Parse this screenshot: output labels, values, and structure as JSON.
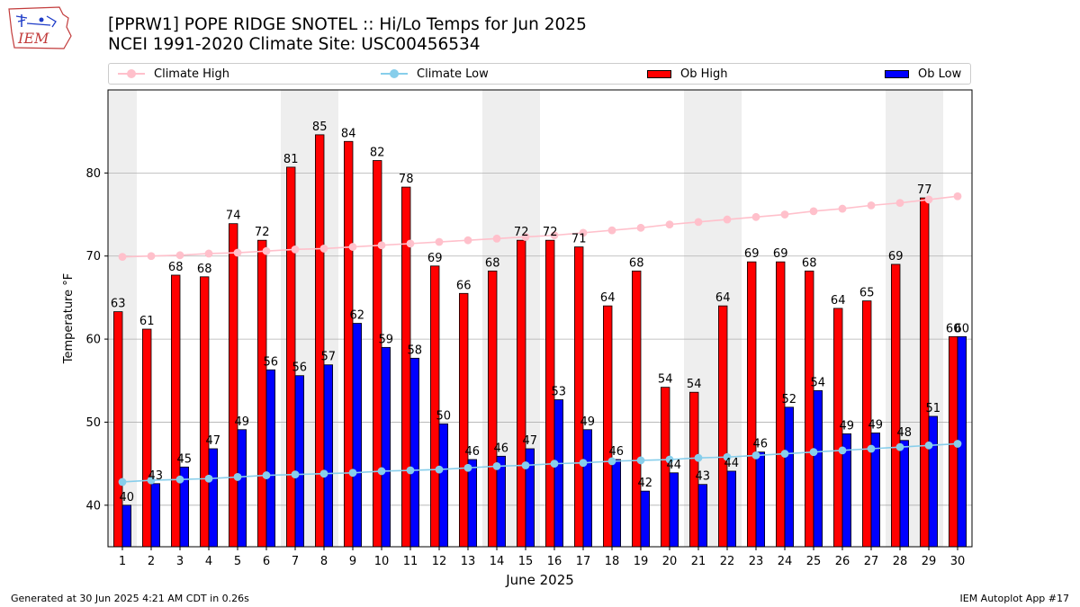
{
  "header": {
    "logo_text": "IEM",
    "title_line1": "[PPRW1] POPE RIDGE SNOTEL :: Hi/Lo Temps for Jun 2025",
    "title_line2": "NCEI 1991-2020 Climate Site: USC00456534"
  },
  "legend": {
    "climate_high": "Climate High",
    "climate_low": "Climate Low",
    "ob_high": "Ob High",
    "ob_low": "Ob Low"
  },
  "colors": {
    "climate_high": "#ffc0cb",
    "climate_low": "#87ceeb",
    "ob_high": "#ff0000",
    "ob_low": "#0000ff",
    "weekend_band": "#eeeeee",
    "grid": "#b0b0b0"
  },
  "footer": {
    "generated": "Generated at 30 Jun 2025 4:21 AM CDT in 0.26s",
    "app": "IEM Autoplot App #17"
  },
  "chart_data": {
    "type": "bar",
    "xlabel": "June 2025",
    "ylabel": "Temperature °F",
    "ylim": [
      35,
      90
    ],
    "yticks": [
      40,
      50,
      60,
      70,
      80
    ],
    "grid": true,
    "legend_position": "top",
    "categories": [
      "1",
      "2",
      "3",
      "4",
      "5",
      "6",
      "7",
      "8",
      "9",
      "10",
      "11",
      "12",
      "13",
      "14",
      "15",
      "16",
      "17",
      "18",
      "19",
      "20",
      "21",
      "22",
      "23",
      "24",
      "25",
      "26",
      "27",
      "28",
      "29",
      "30"
    ],
    "shaded_days": [
      1,
      7,
      8,
      14,
      15,
      21,
      22,
      28,
      29
    ],
    "series": [
      {
        "name": "Ob High",
        "kind": "bar",
        "values": [
          63.3,
          61.2,
          67.7,
          67.5,
          73.9,
          71.9,
          80.7,
          84.6,
          83.8,
          81.5,
          78.3,
          68.8,
          65.5,
          68.2,
          71.9,
          71.9,
          71.1,
          64.0,
          68.2,
          54.2,
          53.6,
          64.0,
          69.3,
          69.3,
          68.2,
          63.7,
          64.6,
          69.0,
          77.0,
          60.3
        ],
        "labels": [
          "63",
          "61",
          "68",
          "68",
          "74",
          "72",
          "81",
          "85",
          "84",
          "82",
          "78",
          "69",
          "66",
          "68",
          "72",
          "72",
          "71",
          "64",
          "68",
          "54",
          "54",
          "64",
          "69",
          "69",
          "68",
          "64",
          "65",
          "69",
          "77",
          "60"
        ]
      },
      {
        "name": "Ob Low",
        "kind": "bar",
        "values": [
          40.0,
          42.6,
          44.6,
          46.8,
          49.1,
          56.3,
          55.6,
          56.9,
          61.9,
          59.0,
          57.7,
          49.8,
          45.5,
          45.9,
          46.8,
          52.7,
          49.1,
          45.5,
          41.7,
          43.9,
          42.5,
          44.1,
          46.4,
          51.8,
          53.8,
          48.6,
          48.7,
          47.8,
          50.7,
          60.3
        ],
        "labels": [
          "40",
          "43",
          "45",
          "47",
          "49",
          "56",
          "56",
          "57",
          "62",
          "59",
          "58",
          "50",
          "46",
          "46",
          "47",
          "53",
          "49",
          "46",
          "42",
          "44",
          "43",
          "44",
          "46",
          "52",
          "54",
          "49",
          "49",
          "48",
          "51",
          "60"
        ]
      },
      {
        "name": "Climate High",
        "kind": "line",
        "values": [
          69.9,
          70.0,
          70.1,
          70.3,
          70.4,
          70.6,
          70.8,
          70.9,
          71.1,
          71.3,
          71.5,
          71.7,
          71.9,
          72.1,
          72.3,
          72.5,
          72.8,
          73.1,
          73.4,
          73.8,
          74.1,
          74.4,
          74.7,
          75.0,
          75.4,
          75.7,
          76.1,
          76.4,
          76.8,
          77.2
        ]
      },
      {
        "name": "Climate Low",
        "kind": "line",
        "values": [
          42.8,
          43.0,
          43.1,
          43.2,
          43.4,
          43.6,
          43.7,
          43.8,
          43.9,
          44.1,
          44.2,
          44.3,
          44.5,
          44.7,
          44.8,
          45.0,
          45.1,
          45.3,
          45.4,
          45.5,
          45.7,
          45.8,
          46.0,
          46.2,
          46.4,
          46.6,
          46.8,
          47.0,
          47.2,
          47.4
        ]
      }
    ]
  }
}
